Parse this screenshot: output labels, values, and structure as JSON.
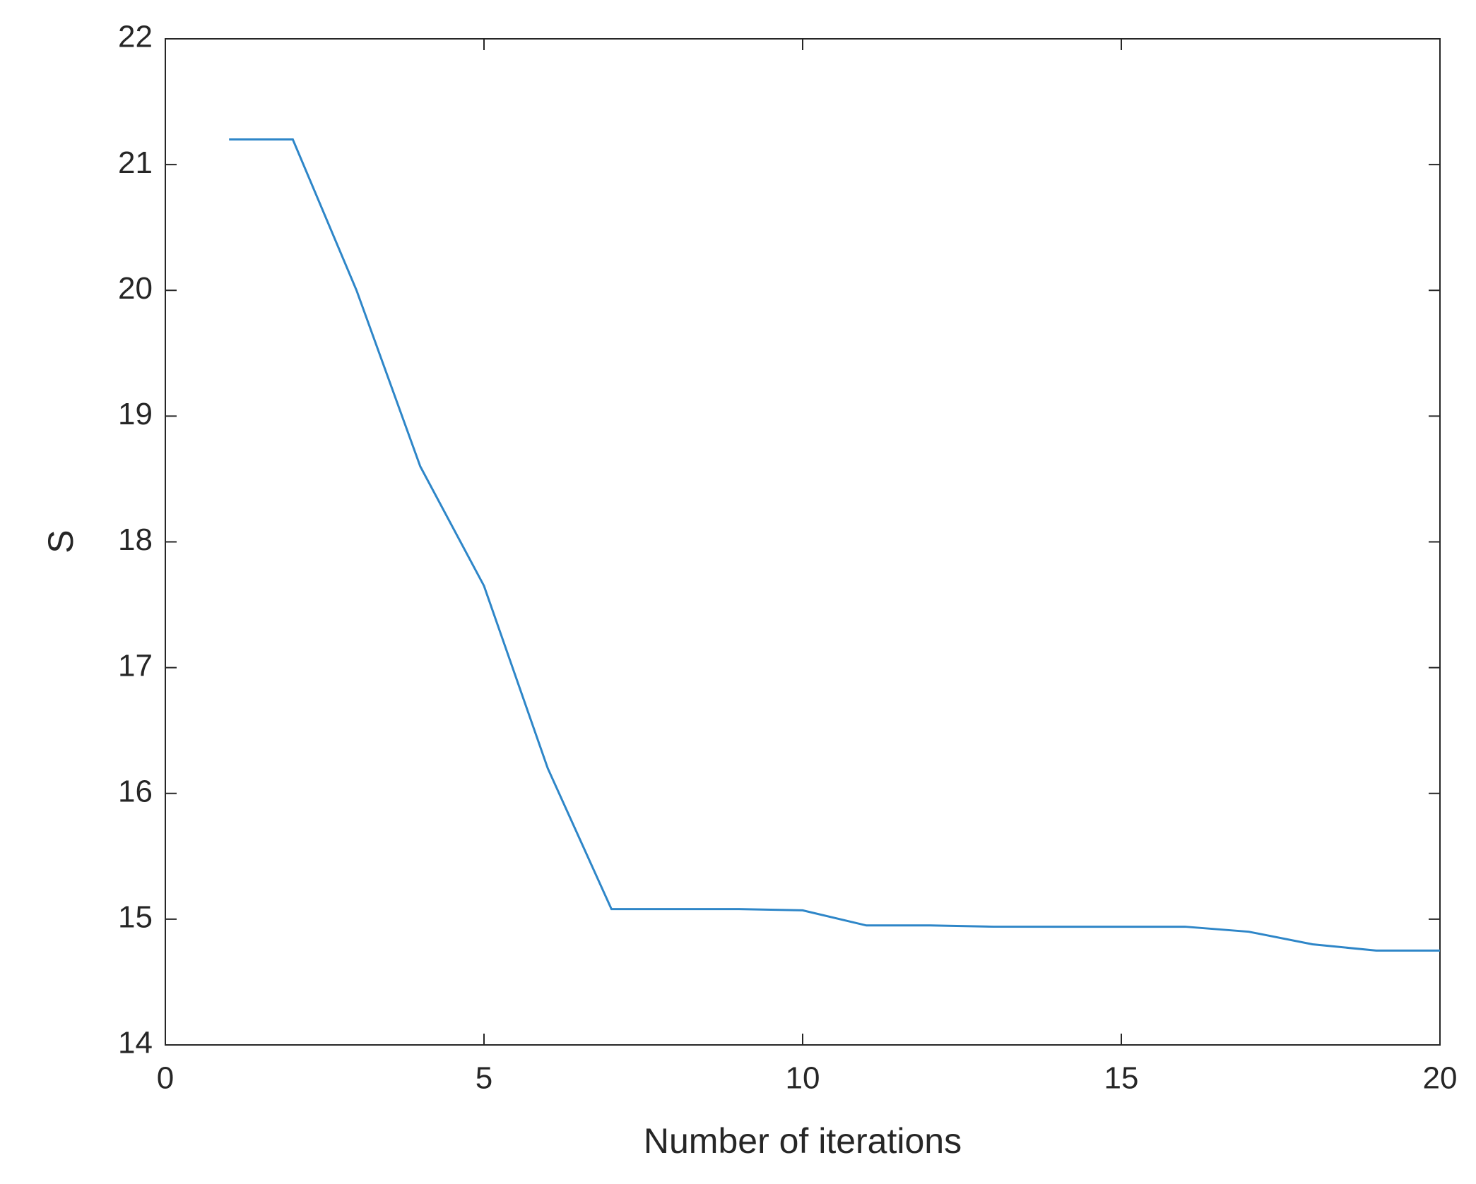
{
  "chart_data": {
    "type": "line",
    "x_label": "Number of iterations",
    "y_label": "S",
    "x": [
      1,
      2,
      3,
      4,
      5,
      6,
      7,
      8,
      9,
      10,
      11,
      12,
      13,
      14,
      15,
      16,
      17,
      18,
      19,
      20
    ],
    "series": [
      {
        "color": "#2e86c8",
        "values": [
          21.2,
          21.2,
          20.0,
          18.6,
          17.65,
          16.2,
          15.08,
          15.08,
          15.08,
          15.07,
          14.95,
          14.95,
          14.94,
          14.94,
          14.94,
          14.94,
          14.9,
          14.8,
          14.75,
          14.75
        ]
      }
    ],
    "xlim": [
      0,
      20
    ],
    "xticks": [
      0,
      5,
      10,
      15,
      20
    ],
    "ylim": [
      14,
      22
    ],
    "yticks": [
      14,
      15,
      16,
      17,
      18,
      19,
      20,
      21,
      22
    ],
    "grid": false
  }
}
